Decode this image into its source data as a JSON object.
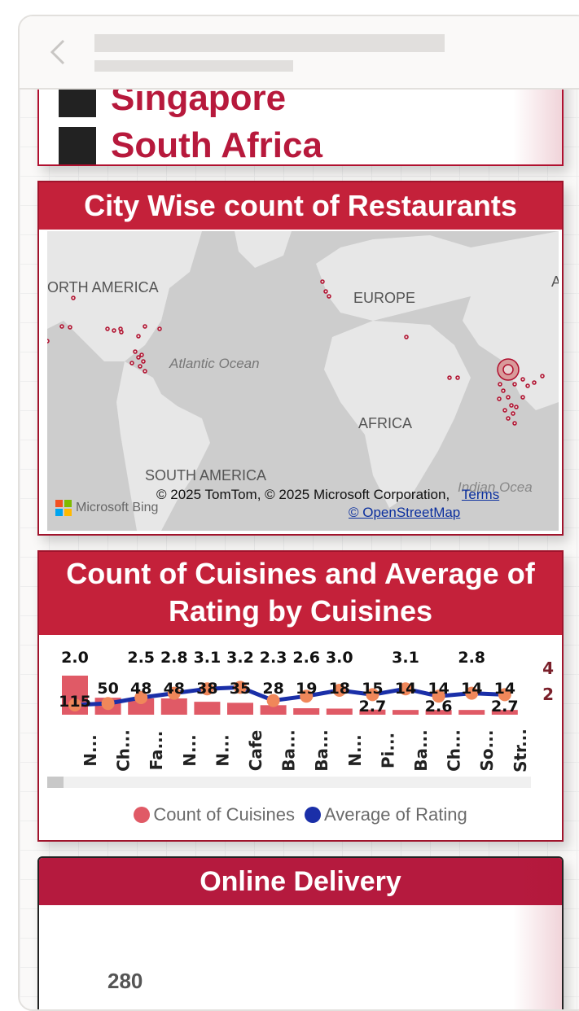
{
  "legend_card": {
    "items": [
      "Singapore",
      "South Africa"
    ]
  },
  "map_card": {
    "title": "City Wise count of Restaurants",
    "labels": {
      "north_america": "ORTH AMERICA",
      "europe": "EUROPE",
      "atlantic": "Atlantic Ocean",
      "africa": "AFRICA",
      "south_america": "SOUTH AMERICA",
      "indian_ocean": "Indian Ocea",
      "asia_partial": "A"
    },
    "attribution": "© 2025 TomTom, © 2025 Microsoft Corporation,",
    "terms_link": "Terms",
    "osm_link": "© OpenStreetMap",
    "bing_logo": "Microsoft Bing"
  },
  "cuisines_card": {
    "title_line1": "Count of Cuisines and Average of",
    "title_line2": "Rating by Cuisines",
    "legend": [
      "Count of Cuisines",
      "Average of Rating"
    ],
    "right_axis_ticks": [
      "4",
      "2"
    ]
  },
  "delivery_card": {
    "title": "Online Delivery",
    "value_label": "280"
  },
  "colors": {
    "accent": "#c4213a",
    "bar": "#e05a66",
    "line": "#1a2fa8",
    "marker": "#f0875a"
  },
  "chart_data": {
    "type": "bar",
    "categories": [
      "N...",
      "Ch...",
      "Fa...",
      "N...",
      "N...",
      "Cafe",
      "Ba...",
      "Ba...",
      "N...",
      "Pi...",
      "Ba...",
      "Ch...",
      "So...",
      "Str..."
    ],
    "series": [
      {
        "name": "Count of Cuisines",
        "values": [
          115,
          50,
          48,
          48,
          38,
          35,
          28,
          19,
          18,
          15,
          14,
          14,
          14,
          14
        ]
      },
      {
        "name": "Average of Rating",
        "values": [
          2.0,
          2.1,
          2.5,
          2.8,
          3.1,
          3.2,
          2.3,
          2.6,
          3.0,
          2.7,
          3.1,
          2.6,
          2.8,
          2.7
        ]
      }
    ],
    "bar_labels": [
      "115",
      "50",
      "48",
      "48",
      "38",
      "35",
      "28",
      "19",
      "18",
      "15",
      "14",
      "14",
      "14",
      "14"
    ],
    "rating_labels": [
      "2.0",
      "",
      "2.5",
      "2.8",
      "3.1",
      "3.2",
      "2.3",
      "2.6",
      "3.0",
      "2.7",
      "3.1",
      "2.6",
      "2.8",
      "2.7"
    ]
  }
}
